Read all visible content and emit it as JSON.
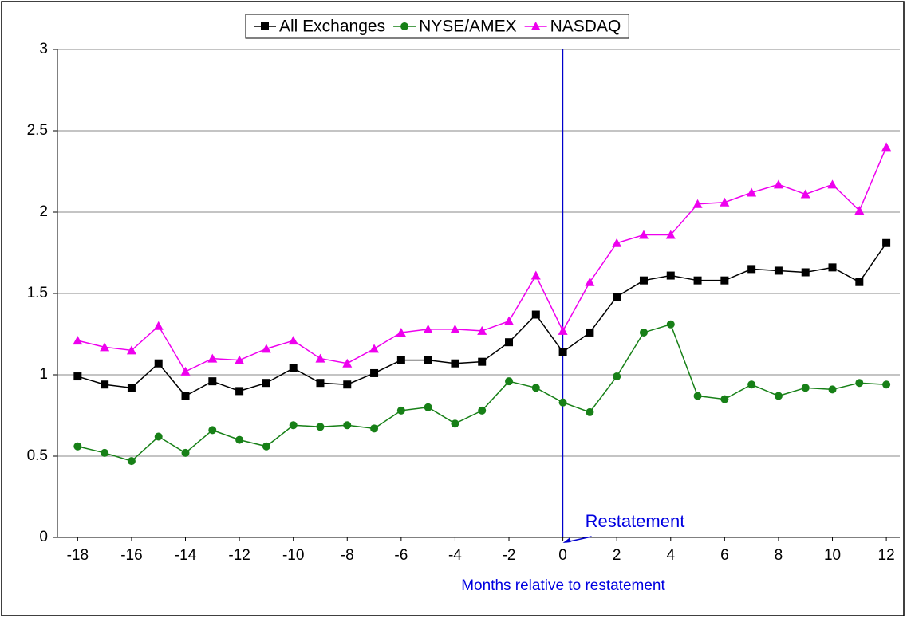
{
  "chart_data": {
    "type": "line",
    "xlabel": "Months relative to restatement",
    "annotation": "Restatement",
    "reference_line_x": 0,
    "x": [
      -18,
      -17,
      -16,
      -15,
      -14,
      -13,
      -12,
      -11,
      -10,
      -9,
      -8,
      -7,
      -6,
      -5,
      -4,
      -3,
      -2,
      -1,
      0,
      1,
      2,
      3,
      4,
      5,
      6,
      7,
      8,
      9,
      10,
      11,
      12
    ],
    "xlim": [
      -18.75,
      12.5
    ],
    "xticks": [
      -18,
      -16,
      -14,
      -12,
      -10,
      -8,
      -6,
      -4,
      -2,
      0,
      2,
      4,
      6,
      8,
      10,
      12
    ],
    "ylim": [
      0,
      3
    ],
    "yticks": [
      0,
      0.5,
      1,
      1.5,
      2,
      2.5,
      3
    ],
    "grid": true,
    "series": [
      {
        "name": "All Exchanges",
        "color": "#000000",
        "marker": "square",
        "values": [
          0.99,
          0.94,
          0.92,
          1.07,
          0.87,
          0.96,
          0.9,
          0.95,
          1.04,
          0.95,
          0.94,
          1.01,
          1.09,
          1.09,
          1.07,
          1.08,
          1.2,
          1.37,
          1.14,
          1.26,
          1.48,
          1.58,
          1.61,
          1.58,
          1.58,
          1.65,
          1.64,
          1.63,
          1.66,
          1.57,
          1.81
        ]
      },
      {
        "name": "NYSE/AMEX",
        "color": "#178017",
        "marker": "circle",
        "values": [
          0.56,
          0.52,
          0.47,
          0.62,
          0.52,
          0.66,
          0.6,
          0.56,
          0.69,
          0.68,
          0.69,
          0.67,
          0.78,
          0.8,
          0.7,
          0.78,
          0.96,
          0.92,
          0.83,
          0.77,
          0.99,
          1.26,
          1.31,
          0.87,
          0.85,
          0.94,
          0.87,
          0.92,
          0.91,
          0.95,
          0.94
        ]
      },
      {
        "name": "NASDAQ",
        "color": "#ee00ee",
        "marker": "triangle",
        "values": [
          1.21,
          1.17,
          1.15,
          1.3,
          1.02,
          1.1,
          1.09,
          1.16,
          1.21,
          1.1,
          1.07,
          1.16,
          1.26,
          1.28,
          1.28,
          1.27,
          1.33,
          1.61,
          1.27,
          1.57,
          1.81,
          1.86,
          1.86,
          2.05,
          2.06,
          2.12,
          2.17,
          2.11,
          2.17,
          2.01,
          2.4
        ]
      }
    ]
  }
}
